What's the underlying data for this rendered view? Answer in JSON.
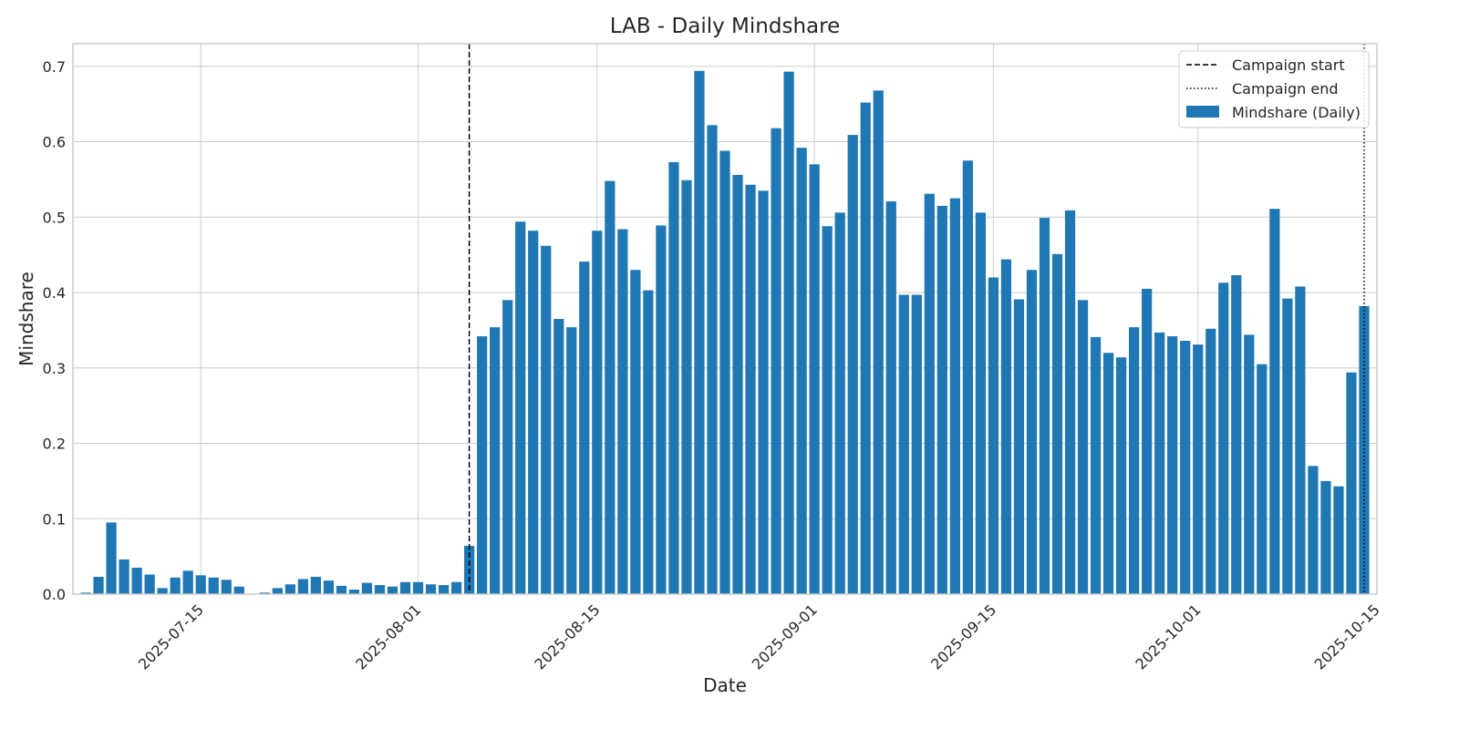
{
  "chart_data": {
    "type": "bar",
    "title": "LAB - Daily Mindshare",
    "xlabel": "Date",
    "ylabel": "Mindshare",
    "xlim": [
      "2025-07-05",
      "2025-10-15"
    ],
    "ylim": [
      0,
      0.73
    ],
    "yticks": [
      0.0,
      0.1,
      0.2,
      0.3,
      0.4,
      0.5,
      0.6,
      0.7
    ],
    "ytick_labels": [
      "0.0",
      "0.1",
      "0.2",
      "0.3",
      "0.4",
      "0.5",
      "0.6",
      "0.7"
    ],
    "xticks": [
      "2025-07-15",
      "2025-08-01",
      "2025-08-15",
      "2025-09-01",
      "2025-09-15",
      "2025-10-01",
      "2025-10-15"
    ],
    "xtick_labels": [
      "2025-07-15",
      "2025-08-01",
      "2025-08-15",
      "2025-09-01",
      "2025-09-15",
      "2025-10-01",
      "2025-10-15"
    ],
    "grid": true,
    "legend_position": "top-right",
    "bar_color": "#1f77b4",
    "start_date": "2025-07-06",
    "series": [
      {
        "name": "Mindshare (Daily)",
        "values": [
          0.002,
          0.023,
          0.095,
          0.046,
          0.035,
          0.026,
          0.008,
          0.022,
          0.031,
          0.025,
          0.022,
          0.019,
          0.01,
          0.0,
          0.002,
          0.008,
          0.013,
          0.02,
          0.023,
          0.018,
          0.011,
          0.006,
          0.015,
          0.012,
          0.01,
          0.016,
          0.016,
          0.013,
          0.012,
          0.016,
          0.064,
          0.342,
          0.354,
          0.39,
          0.494,
          0.482,
          0.462,
          0.365,
          0.354,
          0.441,
          0.482,
          0.548,
          0.484,
          0.43,
          0.403,
          0.489,
          0.573,
          0.549,
          0.694,
          0.622,
          0.588,
          0.556,
          0.543,
          0.535,
          0.618,
          0.693,
          0.592,
          0.57,
          0.488,
          0.506,
          0.609,
          0.652,
          0.668,
          0.521,
          0.397,
          0.397,
          0.531,
          0.515,
          0.525,
          0.575,
          0.506,
          0.42,
          0.444,
          0.391,
          0.43,
          0.499,
          0.451,
          0.509,
          0.39,
          0.341,
          0.32,
          0.314,
          0.354,
          0.405,
          0.347,
          0.342,
          0.336,
          0.331,
          0.352,
          0.413,
          0.423,
          0.344,
          0.305,
          0.511,
          0.392,
          0.408,
          0.17,
          0.15,
          0.143,
          0.294,
          0.382
        ]
      }
    ],
    "vlines": [
      {
        "name": "Campaign start",
        "date": "2025-08-05",
        "style": "dashed"
      },
      {
        "name": "Campaign end",
        "date": "2025-10-14",
        "style": "dotted"
      }
    ],
    "legend": [
      {
        "label": "Campaign start",
        "kind": "dashed-line"
      },
      {
        "label": "Campaign end",
        "kind": "dotted-line"
      },
      {
        "label": "Mindshare (Daily)",
        "kind": "bar"
      }
    ]
  }
}
